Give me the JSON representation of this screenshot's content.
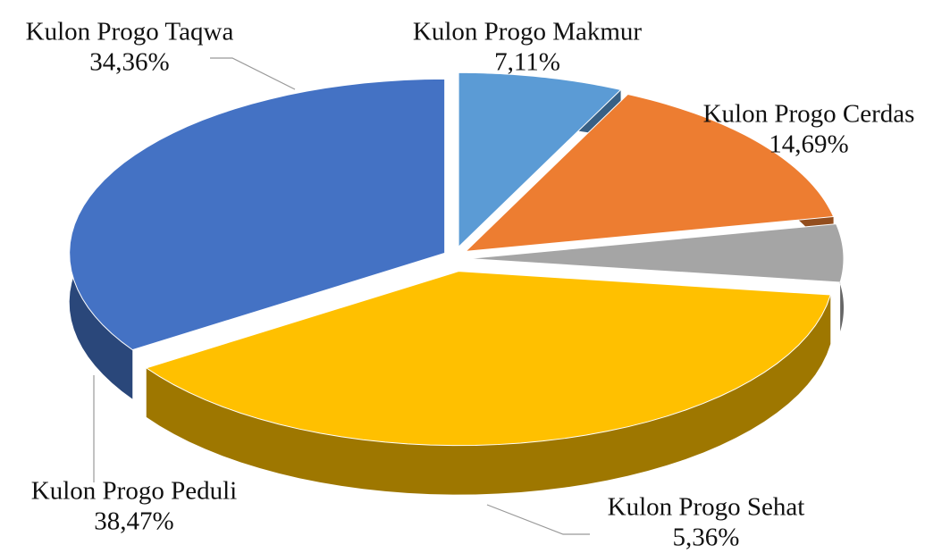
{
  "chart_data": {
    "type": "pie",
    "categories": [
      "Kulon Progo Makmur",
      "Kulon Progo Cerdas",
      "Kulon Progo Sehat",
      "Kulon Progo Peduli",
      "Kulon Progo Taqwa"
    ],
    "values": [
      7.11,
      14.69,
      5.36,
      38.47,
      34.36
    ],
    "value_labels": [
      "7,11%",
      "14,69%",
      "5,36%",
      "38,47%",
      "34,36%"
    ],
    "colors": [
      "#5b9bd5",
      "#ed7d31",
      "#a5a5a5",
      "#ffc000",
      "#4472c4"
    ]
  }
}
